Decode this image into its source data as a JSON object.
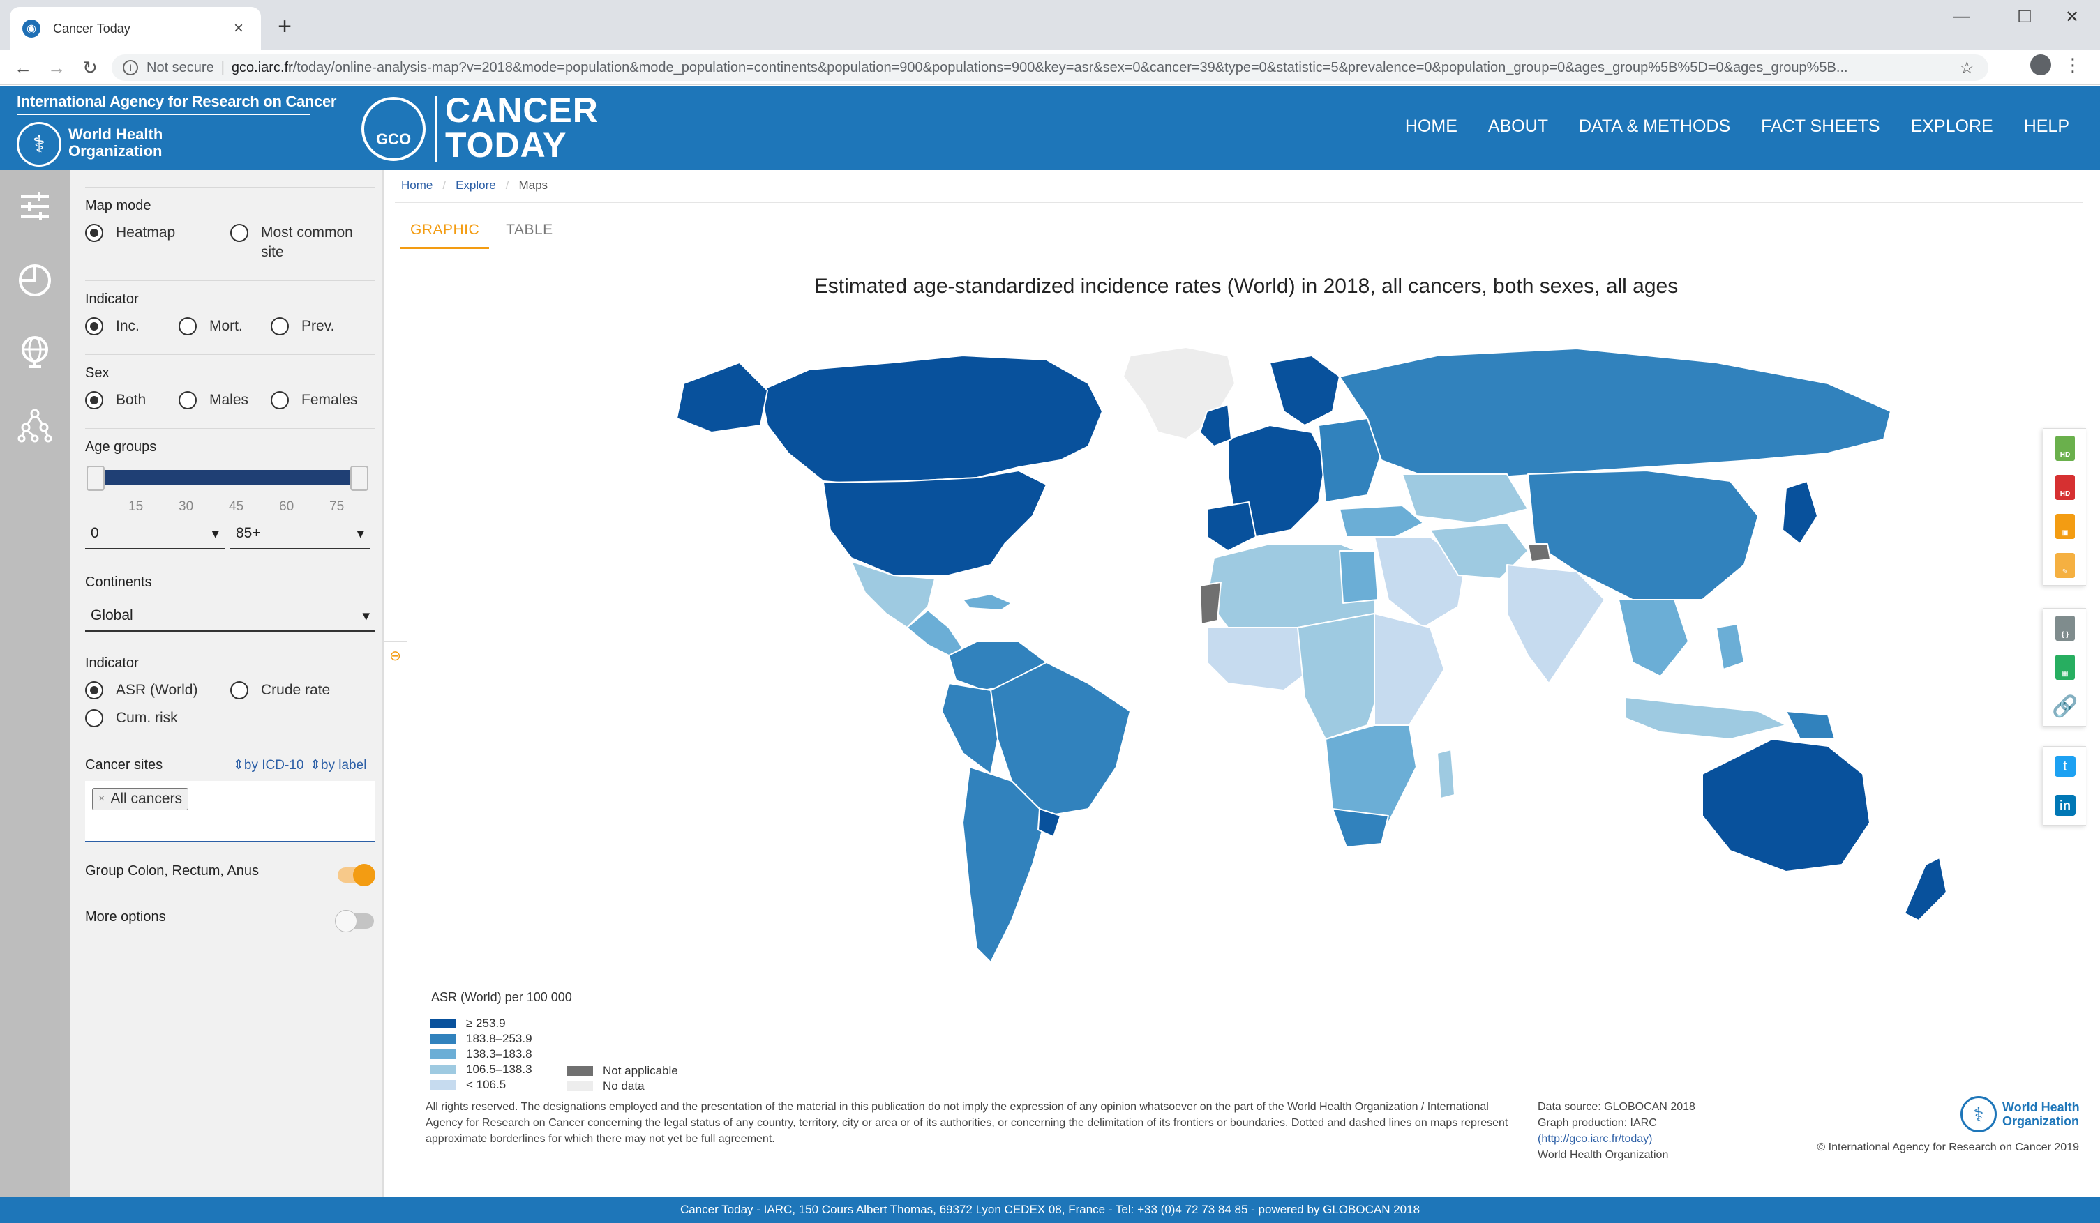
{
  "browser": {
    "tab_title": "Cancer Today",
    "new_tab": "+",
    "security_label": "Not secure",
    "url_host": "gco.iarc.fr",
    "url_path": "/today/online-analysis-map?v=2018&mode=population&mode_population=continents&population=900&populations=900&key=asr&sex=0&cancer=39&type=0&statistic=5&prevalence=0&population_group=0&ages_group%5B%5D=0&ages_group%5B..."
  },
  "header": {
    "iarc": "International Agency for Research on Cancer",
    "who": "World Health Organization",
    "gco": "GCO",
    "brand": "CANCER TODAY",
    "nav": [
      "HOME",
      "ABOUT",
      "DATA & METHODS",
      "FACT SHEETS",
      "EXPLORE",
      "HELP"
    ]
  },
  "sidebar": {
    "map_mode": {
      "label": "Map mode",
      "options": [
        "Heatmap",
        "Most common site"
      ],
      "selected": "Heatmap"
    },
    "indicator": {
      "label": "Indicator",
      "options": [
        "Inc.",
        "Mort.",
        "Prev."
      ],
      "selected": "Inc."
    },
    "sex": {
      "label": "Sex",
      "options": [
        "Both",
        "Males",
        "Females"
      ],
      "selected": "Both"
    },
    "age_groups": {
      "label": "Age groups",
      "ticks": [
        "15",
        "30",
        "45",
        "60",
        "75"
      ],
      "from": "0",
      "to": "85+"
    },
    "continents": {
      "label": "Continents",
      "value": "Global"
    },
    "indicator2": {
      "label": "Indicator",
      "options": [
        "ASR (World)",
        "Crude rate",
        "Cum. risk"
      ],
      "selected": "ASR (World)"
    },
    "cancer_sites": {
      "label": "Cancer sites",
      "by_icd": "by ICD-10",
      "by_label": "by label",
      "tag": "All cancers"
    },
    "group_colon": {
      "label": "Group Colon, Rectum, Anus",
      "on": true
    },
    "more_options": {
      "label": "More options",
      "on": false
    }
  },
  "main": {
    "breadcrumb": [
      "Home",
      "Explore",
      "Maps"
    ],
    "tabs": [
      "GRAPHIC",
      "TABLE"
    ],
    "active_tab": "GRAPHIC",
    "title": "Estimated age-standardized incidence rates (World) in 2018, all cancers, both sexes, all ages",
    "legend": {
      "title": "ASR (World) per 100 000",
      "classes": [
        {
          "label": "≥ 253.9",
          "color": "#08519c"
        },
        {
          "label": "183.8–253.9",
          "color": "#3182bd"
        },
        {
          "label": "138.3–183.8",
          "color": "#6baed6"
        },
        {
          "label": "106.5–138.3",
          "color": "#9ecae1"
        },
        {
          "label": "< 106.5",
          "color": "#c6dbef"
        }
      ],
      "special": [
        {
          "label": "Not applicable",
          "color": "#707070"
        },
        {
          "label": "No data",
          "color": "#ededed"
        }
      ]
    },
    "disclaimer": "All rights reserved. The designations employed and the presentation of the material in this publication do not imply the expression of any opinion whatsoever on the part of the World Health Organization / International Agency for Research on Cancer concerning the legal status of any country, territory, city or area or of its authorities, or concerning the delimitation of its frontiers or boundaries. Dotted and dashed lines on maps represent approximate borderlines for which there may not yet be full agreement.",
    "source": {
      "line1": "Data source: GLOBOCAN 2018",
      "line2": "Graph production: IARC",
      "link": "(http://gco.iarc.fr/today)",
      "line4": "World Health Organization"
    },
    "footer_logo": "World Health Organization",
    "copyright": "© International Agency for Research on Cancer 2019"
  },
  "footer": "Cancer Today - IARC, 150 Cours Albert Thomas, 69372 Lyon CEDEX 08, France - Tel: +33 (0)4 72 73 84 85 - powered by GLOBOCAN 2018"
}
